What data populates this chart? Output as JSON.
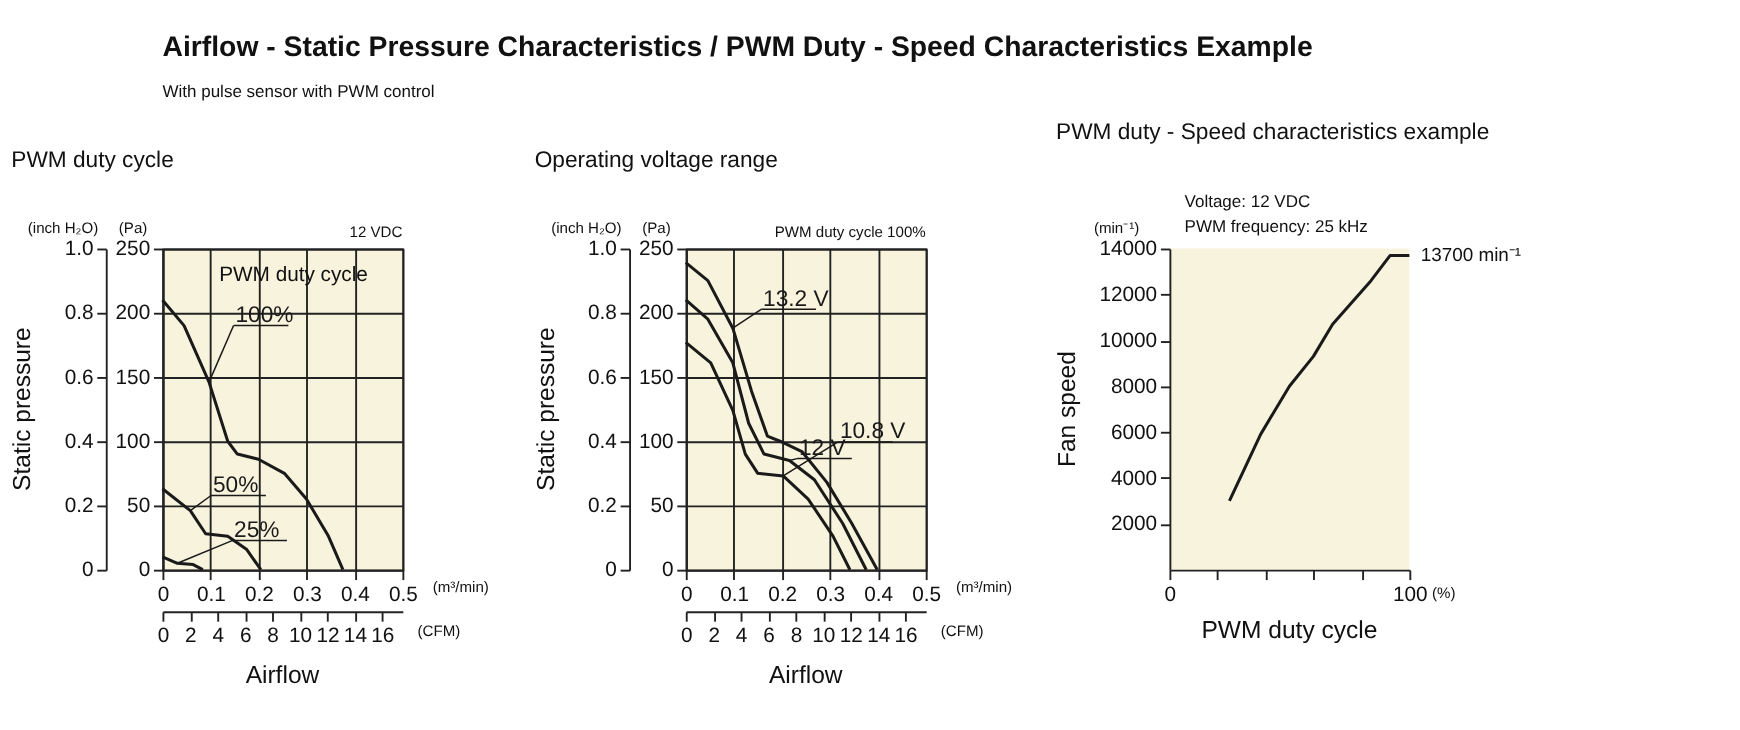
{
  "chart_data": [
    {
      "type": "other",
      "title": "Airflow - Static Pressure Characteristics / PWM Duty - Speed Characteristics Example",
      "subtitle": "With pulse sensor with PWM control"
    },
    {
      "type": "line",
      "title": "PWM duty cycle",
      "xlabel": "Airflow",
      "y2label": "Static pressure",
      "annotations": [
        "12 VDC",
        "PWM duty cycle",
        "(m³/min)",
        "(CFM)",
        "(Pa)",
        "(inch H₂O)"
      ],
      "xlim": [
        0,
        0.5
      ],
      "xticks": [
        0,
        0.1,
        0.2,
        0.3,
        0.4,
        0.5
      ],
      "ylim": [
        0,
        250
      ],
      "yticks": [
        0,
        50,
        100,
        150,
        200,
        250
      ],
      "x2lim": [
        0,
        17.5
      ],
      "x2ticks": [
        0,
        2,
        4,
        6,
        8,
        10,
        12,
        14,
        16
      ],
      "y2lim": [
        0,
        1.0
      ],
      "y2ticks": [
        0,
        0.2,
        0.4,
        0.6,
        0.8,
        {
          "value": 1,
          "label": "1.0"
        }
      ],
      "grid": true,
      "series": [
        {
          "name": "100%",
          "color": "#1a1a1a",
          "x": [
            0,
            0.045,
            0.097,
            0.136,
            0.156,
            0.2,
            0.254,
            0.3,
            0.346,
            0.376
          ],
          "values": [
            210,
            190,
            146,
            100,
            90,
            86,
            75,
            55,
            26,
            0
          ]
        },
        {
          "name": "50%",
          "color": "#1a1a1a",
          "x": [
            0,
            0.058,
            0.09,
            0.136,
            0.175,
            0.205
          ],
          "values": [
            63,
            46,
            28,
            26,
            16,
            0
          ]
        },
        {
          "name": "25%",
          "color": "#1a1a1a",
          "x": [
            0,
            0.031,
            0.064,
            0.084
          ],
          "values": [
            10,
            5,
            4,
            0
          ]
        }
      ]
    },
    {
      "type": "line",
      "title": "Operating voltage range",
      "xlabel": "Airflow",
      "y2label": "Static pressure",
      "annotations": [
        "PWM duty cycle 100%",
        "(m³/min)",
        "(CFM)",
        "(Pa)",
        "(inch H₂O)"
      ],
      "xlim": [
        0,
        0.5
      ],
      "xticks": [
        0,
        0.1,
        0.2,
        0.3,
        0.4,
        0.5
      ],
      "ylim": [
        0,
        250
      ],
      "yticks": [
        0,
        50,
        100,
        150,
        200,
        250
      ],
      "x2lim": [
        0,
        17.5
      ],
      "x2ticks": [
        0,
        2,
        4,
        6,
        8,
        10,
        12,
        14,
        16
      ],
      "y2lim": [
        0,
        1.0
      ],
      "y2ticks": [
        0,
        0.2,
        0.4,
        0.6,
        0.8,
        {
          "value": 1,
          "label": "1.0"
        }
      ],
      "grid": true,
      "series": [
        {
          "name": "13.2 V",
          "color": "#1a1a1a",
          "x": [
            0,
            0.046,
            0.098,
            0.137,
            0.17,
            0.203,
            0.242,
            0.294,
            0.346,
            0.399
          ],
          "values": [
            239,
            225,
            188,
            139,
            104,
            99,
            92,
            68,
            36,
            0
          ]
        },
        {
          "name": "12 V",
          "color": "#1a1a1a",
          "x": [
            0,
            0.046,
            0.098,
            0.131,
            0.163,
            0.216,
            0.268,
            0.327,
            0.376
          ],
          "values": [
            210,
            195,
            161,
            114,
            90,
            85,
            70,
            36,
            0
          ]
        },
        {
          "name": "10.8 V",
          "color": "#1a1a1a",
          "x": [
            0,
            0.052,
            0.098,
            0.124,
            0.15,
            0.203,
            0.255,
            0.307,
            0.342
          ],
          "values": [
            177,
            161,
            124,
            90,
            75,
            73,
            55,
            26,
            0
          ]
        }
      ]
    },
    {
      "type": "line",
      "title": "PWM duty - Speed characteristics example",
      "xlabel": "PWM duty cycle",
      "ylabel": "Fan speed",
      "annotations": [
        "Voltage: 12 VDC",
        "PWM frequency: 25 kHz",
        "(%)",
        "(min⁻¹)",
        {
          "text": "13700 min⁻¹",
          "x": 100,
          "y": 13700
        }
      ],
      "xlim": [
        0,
        100
      ],
      "xticks": [
        0,
        {
          "value": 20,
          "label": null
        },
        {
          "value": 40,
          "label": null
        },
        {
          "value": 60,
          "label": null
        },
        {
          "value": 80,
          "label": null
        },
        100
      ],
      "ylim": [
        0,
        14000
      ],
      "yticks": [
        2000,
        4000,
        6000,
        8000,
        10000,
        12000,
        14000
      ],
      "grid": false,
      "series": [
        {
          "color": "#1a1a1a",
          "x": [
            25,
            38,
            50,
            60,
            68,
            84,
            92,
            100
          ],
          "values": [
            3000,
            5900,
            8000,
            9300,
            10700,
            12600,
            13700,
            13700
          ]
        }
      ]
    }
  ]
}
